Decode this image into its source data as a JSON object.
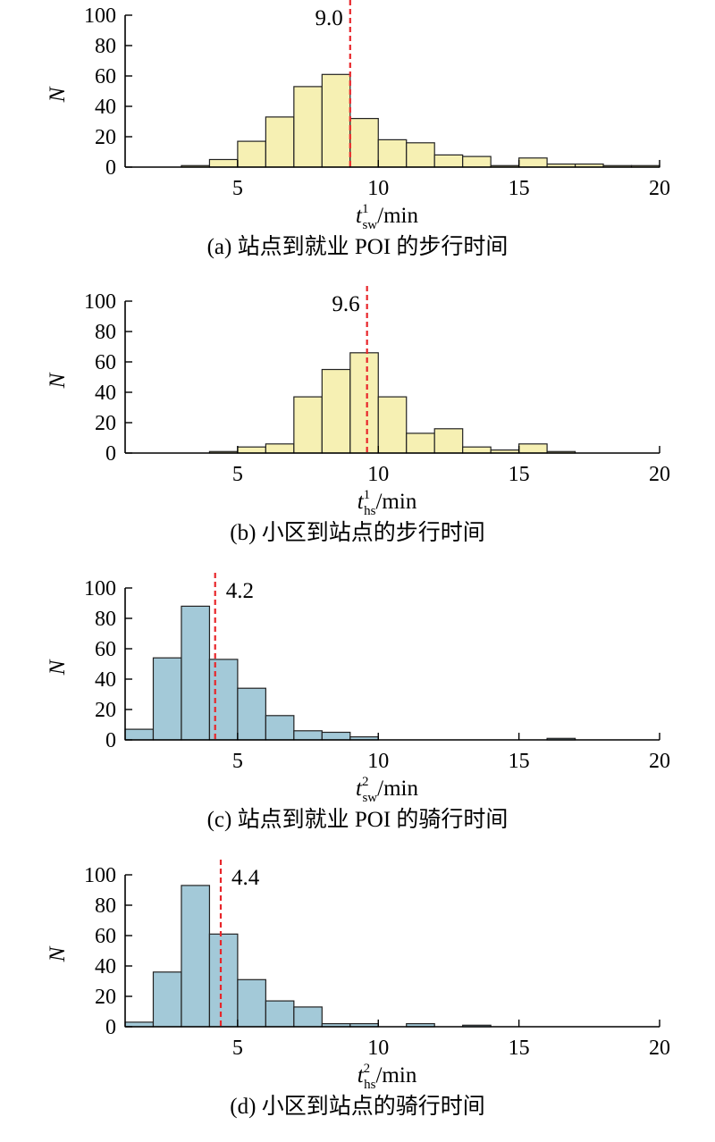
{
  "colors": {
    "walk": "#f6f0b3",
    "bike": "#a3c9d8",
    "median": "#e8262a",
    "edge": "#222222"
  },
  "chart_data": [
    {
      "type": "bar",
      "caption": "(a) 站点到就业 POI 的步行时间",
      "ylabel": "N",
      "xlabel": {
        "base": "t",
        "sub": "sw",
        "sup": "1",
        "unit": "/min"
      },
      "xlim": [
        1,
        20
      ],
      "ylim": [
        0,
        100
      ],
      "xticks": [
        5,
        10,
        15,
        20
      ],
      "yticks": [
        0,
        20,
        40,
        60,
        80,
        100
      ],
      "bin_width": 1,
      "bins": [
        3,
        4,
        5,
        6,
        7,
        8,
        9,
        10,
        11,
        12,
        13,
        14,
        15,
        16,
        17,
        18,
        19
      ],
      "values": [
        1,
        5,
        17,
        33,
        53,
        61,
        32,
        18,
        16,
        8,
        7,
        1,
        6,
        2,
        2,
        1,
        1
      ],
      "median": 9.0,
      "median_label": "9.0",
      "color_key": "walk"
    },
    {
      "type": "bar",
      "caption": "(b) 小区到站点的步行时间",
      "ylabel": "N",
      "xlabel": {
        "base": "t",
        "sub": "hs",
        "sup": "1",
        "unit": "/min"
      },
      "xlim": [
        1,
        20
      ],
      "ylim": [
        0,
        100
      ],
      "xticks": [
        5,
        10,
        15,
        20
      ],
      "yticks": [
        0,
        20,
        40,
        60,
        80,
        100
      ],
      "bin_width": 1,
      "bins": [
        4,
        5,
        6,
        7,
        8,
        9,
        10,
        11,
        12,
        13,
        14,
        15,
        16
      ],
      "values": [
        1,
        4,
        6,
        37,
        55,
        66,
        37,
        13,
        16,
        4,
        2,
        6,
        1
      ],
      "median": 9.6,
      "median_label": "9.6",
      "color_key": "walk"
    },
    {
      "type": "bar",
      "caption": "(c) 站点到就业 POI 的骑行时间",
      "ylabel": "N",
      "xlabel": {
        "base": "t",
        "sub": "sw",
        "sup": "2",
        "unit": "/min"
      },
      "xlim": [
        1,
        20
      ],
      "ylim": [
        0,
        100
      ],
      "xticks": [
        5,
        10,
        15,
        20
      ],
      "yticks": [
        0,
        20,
        40,
        60,
        80,
        100
      ],
      "bin_width": 1,
      "bins": [
        1,
        2,
        3,
        4,
        5,
        6,
        7,
        8,
        9,
        16
      ],
      "values": [
        7,
        54,
        88,
        53,
        34,
        16,
        6,
        5,
        2,
        1
      ],
      "median": 4.2,
      "median_label": "4.2",
      "color_key": "bike"
    },
    {
      "type": "bar",
      "caption": "(d) 小区到站点的骑行时间",
      "ylabel": "N",
      "xlabel": {
        "base": "t",
        "sub": "hs",
        "sup": "2",
        "unit": "/min"
      },
      "xlim": [
        1,
        20
      ],
      "ylim": [
        0,
        100
      ],
      "xticks": [
        5,
        10,
        15,
        20
      ],
      "yticks": [
        0,
        20,
        40,
        60,
        80,
        100
      ],
      "bin_width": 1,
      "bins": [
        1,
        2,
        3,
        4,
        5,
        6,
        7,
        8,
        9,
        11,
        13
      ],
      "values": [
        3,
        36,
        93,
        61,
        31,
        17,
        13,
        2,
        2,
        2,
        1
      ],
      "median": 4.4,
      "median_label": "4.4",
      "color_key": "bike"
    }
  ]
}
